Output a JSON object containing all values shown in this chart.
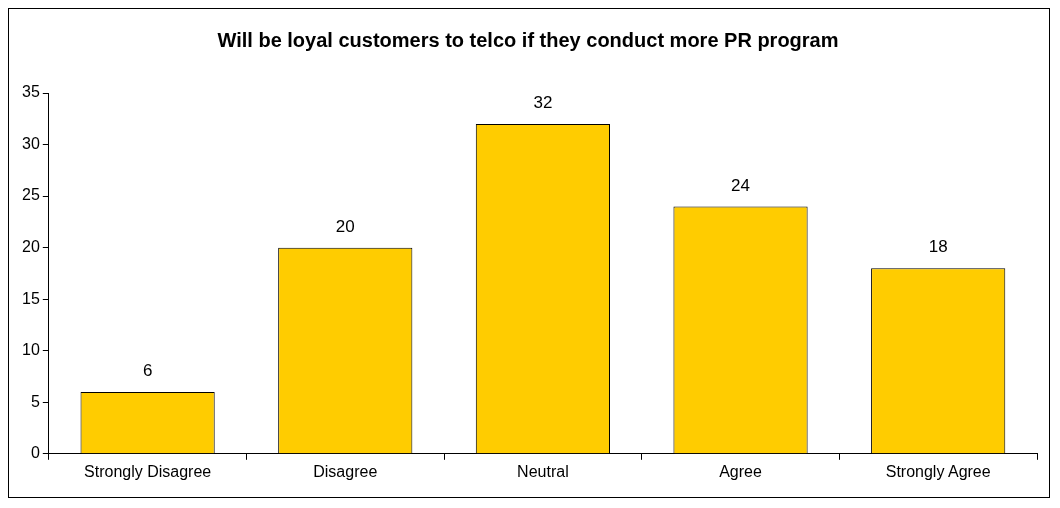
{
  "chart_data": {
    "type": "bar",
    "title": "Will be loyal customers to telco if they conduct more PR program",
    "categories": [
      "Strongly Disagree",
      "Disagree",
      "Neutral",
      "Agree",
      "Strongly Agree"
    ],
    "values": [
      6,
      20,
      32,
      24,
      18
    ],
    "color": "#ffcc00",
    "ylim": [
      0,
      35
    ],
    "yticks": [
      0,
      5,
      10,
      15,
      20,
      25,
      30,
      35
    ],
    "grid": false,
    "legend": false,
    "data_labels": true
  }
}
